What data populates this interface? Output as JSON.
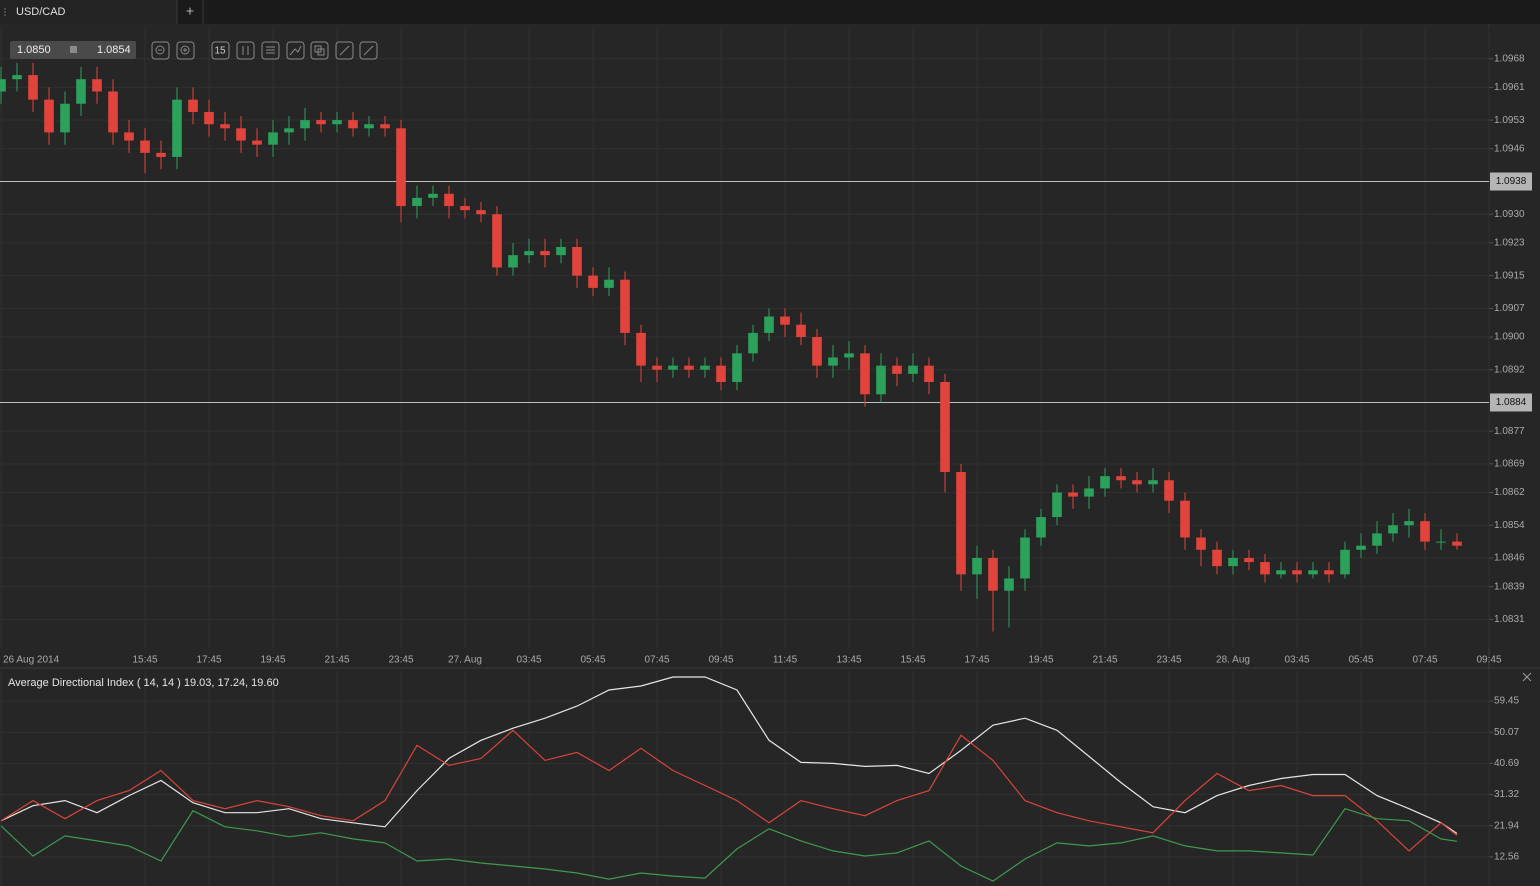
{
  "quote": {
    "bid": "1.0850",
    "ask": "1.0854"
  },
  "toolbar": {
    "interval": "15"
  },
  "tab_add": "+",
  "chart_data": [
    {
      "type": "candlestick",
      "title": "USD/CAD",
      "up_color": "#2ba15c",
      "down_color": "#e2443c",
      "grid": true,
      "x": [
        0,
        2,
        4,
        6,
        8,
        10,
        12,
        14,
        16,
        18,
        20,
        22,
        24,
        26,
        28,
        30,
        32,
        34,
        36,
        38,
        40,
        42,
        44,
        46,
        48,
        50,
        52,
        54,
        56,
        58,
        60,
        62,
        64,
        66,
        68,
        70,
        72,
        74,
        76,
        78,
        80,
        82,
        84,
        86,
        88,
        90,
        92,
        94,
        96,
        98,
        100,
        102,
        104,
        106,
        108,
        110,
        112,
        114,
        116,
        118,
        120,
        122,
        124,
        126,
        128,
        130,
        132,
        134,
        136,
        138,
        140,
        142,
        144,
        146,
        148,
        150,
        152,
        154,
        156,
        158,
        160,
        162,
        164,
        166,
        168,
        170,
        172,
        174,
        176,
        178,
        180,
        182
      ],
      "open": [
        1.096,
        1.0963,
        1.0964,
        1.0958,
        1.095,
        1.0957,
        1.0963,
        1.096,
        1.095,
        1.0948,
        1.0945,
        1.0944,
        1.0958,
        1.0955,
        1.0952,
        1.0951,
        1.0948,
        1.0947,
        1.095,
        1.0951,
        1.0953,
        1.0952,
        1.0953,
        1.0951,
        1.0952,
        1.0951,
        1.0932,
        1.0934,
        1.0935,
        1.0932,
        1.0931,
        1.093,
        1.0917,
        1.092,
        1.0921,
        1.092,
        1.0922,
        1.0915,
        1.0912,
        1.0914,
        1.0901,
        1.0893,
        1.0892,
        1.0893,
        1.0892,
        1.0893,
        1.0889,
        1.0896,
        1.0901,
        1.0905,
        1.0903,
        1.09,
        1.0893,
        1.0895,
        1.0896,
        1.0886,
        1.0893,
        1.0891,
        1.0893,
        1.0889,
        1.0867,
        1.0842,
        1.0846,
        1.0838,
        1.0841,
        1.0851,
        1.0856,
        1.0862,
        1.0861,
        1.0863,
        1.0866,
        1.0865,
        1.0864,
        1.0865,
        1.086,
        1.0851,
        1.0848,
        1.0844,
        1.0846,
        1.0845,
        1.0842,
        1.0843,
        1.0842,
        1.0843,
        1.0842,
        1.0848,
        1.0849,
        1.0852,
        1.0854,
        1.0855,
        1.085,
        1.085
      ],
      "high": [
        1.0966,
        1.0967,
        1.0967,
        1.0961,
        1.096,
        1.0966,
        1.0966,
        1.0963,
        1.0953,
        1.0951,
        1.0948,
        1.0961,
        1.0961,
        1.0958,
        1.0955,
        1.0954,
        1.0951,
        1.0953,
        1.0954,
        1.0956,
        1.0955,
        1.0955,
        1.0955,
        1.0954,
        1.0954,
        1.0953,
        1.0937,
        1.0937,
        1.0937,
        1.0934,
        1.0933,
        1.0932,
        1.0923,
        1.0924,
        1.0924,
        1.0924,
        1.0924,
        1.0917,
        1.0917,
        1.0916,
        1.0903,
        1.0895,
        1.0895,
        1.0895,
        1.0895,
        1.0895,
        1.0898,
        1.0903,
        1.0907,
        1.0907,
        1.0906,
        1.0902,
        1.0898,
        1.0899,
        1.0898,
        1.0896,
        1.0895,
        1.0896,
        1.0895,
        1.0891,
        1.0869,
        1.0849,
        1.0848,
        1.0844,
        1.0853,
        1.0858,
        1.0864,
        1.0864,
        1.0866,
        1.0868,
        1.0868,
        1.0867,
        1.0868,
        1.0867,
        1.0862,
        1.0853,
        1.085,
        1.0848,
        1.0848,
        1.0847,
        1.0845,
        1.0845,
        1.0845,
        1.0845,
        1.085,
        1.0852,
        1.0855,
        1.0857,
        1.0858,
        1.0857,
        1.0853,
        1.0852
      ],
      "low": [
        1.0957,
        1.096,
        1.0955,
        1.0947,
        1.0947,
        1.0954,
        1.0957,
        1.0947,
        1.0945,
        1.094,
        1.0941,
        1.0941,
        1.0952,
        1.0949,
        1.0948,
        1.0945,
        1.0944,
        1.0944,
        1.0947,
        1.0948,
        1.095,
        1.095,
        1.0949,
        1.0949,
        1.0949,
        1.0928,
        1.0929,
        1.0932,
        1.0929,
        1.0929,
        1.0928,
        1.0915,
        1.0915,
        1.0918,
        1.0917,
        1.0918,
        1.0912,
        1.091,
        1.091,
        1.0898,
        1.0889,
        1.0889,
        1.089,
        1.089,
        1.089,
        1.0887,
        1.0887,
        1.0894,
        1.0899,
        1.09,
        1.0898,
        1.089,
        1.089,
        1.0892,
        1.0883,
        1.0884,
        1.0888,
        1.0889,
        1.0886,
        1.0862,
        1.0838,
        1.0836,
        1.0828,
        1.0829,
        1.0838,
        1.0849,
        1.0854,
        1.0858,
        1.0858,
        1.0861,
        1.0863,
        1.0862,
        1.0862,
        1.0857,
        1.0848,
        1.0844,
        1.0842,
        1.0842,
        1.0843,
        1.084,
        1.0841,
        1.084,
        1.0841,
        1.084,
        1.0841,
        1.0846,
        1.0847,
        1.085,
        1.0851,
        1.0848,
        1.0848,
        1.0848
      ],
      "close": [
        1.0963,
        1.0964,
        1.0958,
        1.095,
        1.0957,
        1.0963,
        1.096,
        1.095,
        1.0948,
        1.0945,
        1.0944,
        1.0958,
        1.0955,
        1.0952,
        1.0951,
        1.0948,
        1.0947,
        1.095,
        1.0951,
        1.0953,
        1.0952,
        1.0953,
        1.0951,
        1.0952,
        1.0951,
        1.0932,
        1.0934,
        1.0935,
        1.0932,
        1.0931,
        1.093,
        1.0917,
        1.092,
        1.0921,
        1.092,
        1.0922,
        1.0915,
        1.0912,
        1.0914,
        1.0901,
        1.0893,
        1.0892,
        1.0893,
        1.0892,
        1.0893,
        1.0889,
        1.0896,
        1.0901,
        1.0905,
        1.0903,
        1.09,
        1.0893,
        1.0895,
        1.0896,
        1.0886,
        1.0893,
        1.0891,
        1.0893,
        1.0889,
        1.0867,
        1.0842,
        1.0846,
        1.0838,
        1.0841,
        1.0851,
        1.0856,
        1.0862,
        1.0861,
        1.0863,
        1.0866,
        1.0865,
        1.0864,
        1.0865,
        1.086,
        1.0851,
        1.0848,
        1.0844,
        1.0846,
        1.0845,
        1.0842,
        1.0843,
        1.0842,
        1.0843,
        1.0842,
        1.0848,
        1.0849,
        1.0852,
        1.0854,
        1.0855,
        1.085,
        1.085,
        1.0849
      ],
      "xlim": [
        0,
        186
      ],
      "xticks": [
        {
          "value": 0,
          "label": "26 Aug 2014"
        },
        {
          "value": 18,
          "label": "15:45"
        },
        {
          "value": 26,
          "label": "17:45"
        },
        {
          "value": 34,
          "label": "19:45"
        },
        {
          "value": 42,
          "label": "21:45"
        },
        {
          "value": 50,
          "label": "23:45"
        },
        {
          "value": 58,
          "label": "27. Aug"
        },
        {
          "value": 66,
          "label": "03:45"
        },
        {
          "value": 74,
          "label": "05:45"
        },
        {
          "value": 82,
          "label": "07:45"
        },
        {
          "value": 90,
          "label": "09:45"
        },
        {
          "value": 98,
          "label": "11:45"
        },
        {
          "value": 106,
          "label": "13:45"
        },
        {
          "value": 114,
          "label": "15:45"
        },
        {
          "value": 122,
          "label": "17:45"
        },
        {
          "value": 130,
          "label": "19:45"
        },
        {
          "value": 138,
          "label": "21:45"
        },
        {
          "value": 146,
          "label": "23:45"
        },
        {
          "value": 154,
          "label": "28. Aug"
        },
        {
          "value": 162,
          "label": "03:45"
        },
        {
          "value": 170,
          "label": "05:45"
        },
        {
          "value": 178,
          "label": "07:45"
        },
        {
          "value": 186,
          "label": "09:45"
        }
      ],
      "ylim": [
        1.0824,
        1.0976
      ],
      "yticks": [
        {
          "value": 1.0968,
          "label": "1.0968"
        },
        {
          "value": 1.0961,
          "label": "1.0961"
        },
        {
          "value": 1.0953,
          "label": "1.0953"
        },
        {
          "value": 1.0946,
          "label": "1.0946"
        },
        {
          "value": 1.093,
          "label": "1.0930"
        },
        {
          "value": 1.0923,
          "label": "1.0923"
        },
        {
          "value": 1.0915,
          "label": "1.0915"
        },
        {
          "value": 1.0907,
          "label": "1.0907"
        },
        {
          "value": 1.09,
          "label": "1.0900"
        },
        {
          "value": 1.0892,
          "label": "1.0892"
        },
        {
          "value": 1.0877,
          "label": "1.0877"
        },
        {
          "value": 1.0869,
          "label": "1.0869"
        },
        {
          "value": 1.0862,
          "label": "1.0862"
        },
        {
          "value": 1.0854,
          "label": "1.0854"
        },
        {
          "value": 1.0846,
          "label": "1.0846"
        },
        {
          "value": 1.0839,
          "label": "1.0839"
        },
        {
          "value": 1.0831,
          "label": "1.0831"
        }
      ],
      "hlines": [
        {
          "value": 1.0938,
          "label": "1.0938"
        },
        {
          "value": 1.0884,
          "label": "1.0884"
        }
      ]
    },
    {
      "type": "line",
      "title": "Average Directional Index ( 14, 14 ) 19.03, 17.24, 19.60",
      "grid": true,
      "x": [
        0,
        4,
        8,
        12,
        16,
        20,
        24,
        28,
        32,
        36,
        40,
        44,
        48,
        52,
        56,
        60,
        64,
        68,
        72,
        76,
        80,
        84,
        88,
        92,
        96,
        100,
        104,
        108,
        112,
        116,
        120,
        124,
        128,
        132,
        136,
        140,
        144,
        148,
        152,
        156,
        160,
        164,
        168,
        172,
        176,
        180,
        182
      ],
      "series": [
        {
          "color": "#e6e6e6",
          "values": [
            23.43,
            27.97,
            29.49,
            25.85,
            31.0,
            35.54,
            28.88,
            25.85,
            25.85,
            27.06,
            24.04,
            22.83,
            21.62,
            32.51,
            42.2,
            47.65,
            51.28,
            54.3,
            57.94,
            62.78,
            63.99,
            66.71,
            66.71,
            62.78,
            47.65,
            40.99,
            40.69,
            39.78,
            40.08,
            37.66,
            44.62,
            52.19,
            54.3,
            50.67,
            42.8,
            34.93,
            27.67,
            25.85,
            31.0,
            34.03,
            36.15,
            37.36,
            37.36,
            31.0,
            27.06,
            22.83,
            19.6
          ]
        },
        {
          "color": "#d9443a",
          "values": [
            23.43,
            29.49,
            24.04,
            29.49,
            32.51,
            38.57,
            29.49,
            27.06,
            29.49,
            27.67,
            24.95,
            23.43,
            29.49,
            46.13,
            40.08,
            42.2,
            50.67,
            41.59,
            44.01,
            38.57,
            45.23,
            38.57,
            34.03,
            29.49,
            22.83,
            29.49,
            27.06,
            24.95,
            29.49,
            32.51,
            49.16,
            41.59,
            29.49,
            25.85,
            23.43,
            21.62,
            19.8,
            29.49,
            37.66,
            32.51,
            34.03,
            31.0,
            31.0,
            23.43,
            14.35,
            22.83,
            19.03
          ]
        },
        {
          "color": "#3f9a4e",
          "values": [
            21.92,
            12.84,
            18.89,
            17.38,
            15.87,
            11.33,
            26.46,
            21.62,
            20.41,
            18.59,
            19.8,
            17.98,
            16.77,
            11.33,
            11.93,
            10.72,
            9.81,
            8.91,
            7.7,
            5.88,
            7.7,
            6.79,
            6.19,
            14.96,
            21.01,
            17.38,
            14.35,
            12.84,
            13.75,
            17.38,
            9.81,
            5.27,
            11.93,
            16.77,
            15.87,
            16.77,
            18.89,
            15.87,
            14.35,
            14.35,
            13.75,
            13.14,
            27.06,
            24.04,
            23.43,
            17.98,
            17.24
          ]
        }
      ],
      "xlim": [
        0,
        186
      ],
      "ylim": [
        4.4,
        68.2
      ],
      "yticks": [
        59.45,
        50.07,
        40.69,
        31.32,
        21.94,
        12.56
      ]
    }
  ]
}
